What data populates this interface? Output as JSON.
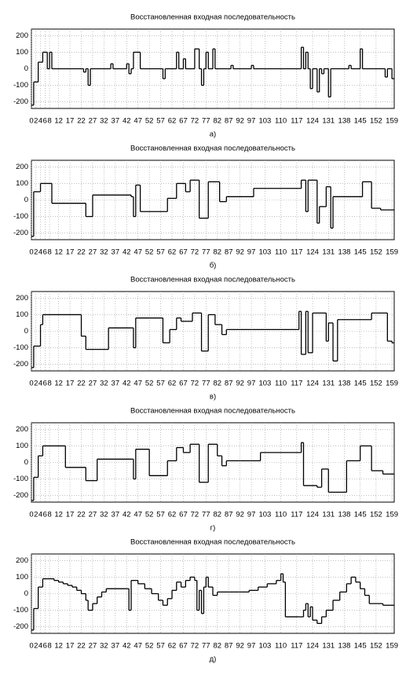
{
  "chart_data": [
    {
      "type": "line",
      "step": "post",
      "title": "Восстановленная входная последовательность",
      "caption": "а)",
      "color": "#000000",
      "grid": true,
      "xlim": [
        0,
        160
      ],
      "ylim": [
        -240,
        240
      ],
      "yticks": [
        -200,
        -100,
        0,
        100,
        200
      ],
      "xticks": [
        0,
        2,
        4,
        6,
        8,
        12,
        17,
        22,
        27,
        32,
        37,
        42,
        47,
        52,
        57,
        62,
        67,
        72,
        77,
        82,
        87,
        92,
        97,
        103,
        110,
        117,
        124,
        131,
        138,
        145,
        152,
        159
      ],
      "x": [
        0,
        1,
        3,
        5,
        7,
        8,
        9,
        23,
        24,
        25,
        26,
        35,
        36,
        42,
        43,
        44,
        45,
        48,
        58,
        59,
        64,
        65,
        67,
        68,
        72,
        74,
        75,
        76,
        77,
        78,
        80,
        81,
        88,
        89,
        97,
        98,
        119,
        120,
        121,
        122,
        123,
        124,
        126,
        127,
        128,
        129,
        131,
        132,
        140,
        141,
        145,
        146,
        156,
        157,
        159
      ],
      "values": [
        -220,
        -80,
        40,
        100,
        0,
        100,
        0,
        -20,
        0,
        -100,
        0,
        30,
        0,
        30,
        -30,
        0,
        100,
        0,
        -60,
        0,
        100,
        0,
        60,
        0,
        120,
        0,
        -100,
        0,
        100,
        0,
        120,
        0,
        20,
        0,
        20,
        0,
        130,
        0,
        100,
        0,
        -120,
        0,
        -140,
        0,
        -30,
        0,
        -170,
        0,
        20,
        0,
        120,
        0,
        -50,
        0,
        -60
      ]
    },
    {
      "type": "line",
      "step": "post",
      "title": "Восстановленная входная последовательность",
      "caption": "б)",
      "color": "#000000",
      "grid": true,
      "xlim": [
        0,
        160
      ],
      "ylim": [
        -240,
        240
      ],
      "yticks": [
        -200,
        -100,
        0,
        100,
        200
      ],
      "xticks": [
        0,
        2,
        4,
        6,
        8,
        12,
        17,
        22,
        27,
        32,
        37,
        42,
        47,
        52,
        57,
        62,
        67,
        72,
        77,
        82,
        87,
        92,
        97,
        103,
        110,
        117,
        124,
        131,
        138,
        145,
        152,
        159
      ],
      "x": [
        0,
        1,
        4,
        9,
        24,
        27,
        44,
        45,
        46,
        48,
        60,
        64,
        68,
        70,
        74,
        78,
        83,
        86,
        98,
        119,
        121,
        122,
        126,
        127,
        130,
        132,
        133,
        146,
        150,
        154
      ],
      "values": [
        -220,
        50,
        100,
        -20,
        -100,
        30,
        20,
        -100,
        90,
        -70,
        10,
        100,
        50,
        120,
        -110,
        110,
        -10,
        20,
        70,
        120,
        -70,
        120,
        -140,
        -40,
        80,
        -170,
        20,
        110,
        -50,
        -60
      ]
    },
    {
      "type": "line",
      "step": "post",
      "title": "Восстановленная входная последовательность",
      "caption": "в)",
      "color": "#000000",
      "grid": true,
      "xlim": [
        0,
        160
      ],
      "ylim": [
        -240,
        240
      ],
      "yticks": [
        -200,
        -100,
        0,
        100,
        200
      ],
      "xticks": [
        0,
        2,
        4,
        6,
        8,
        12,
        17,
        22,
        27,
        32,
        37,
        42,
        47,
        52,
        57,
        62,
        67,
        72,
        77,
        82,
        87,
        92,
        97,
        103,
        110,
        117,
        124,
        131,
        138,
        145,
        152,
        159
      ],
      "x": [
        0,
        1,
        4,
        5,
        22,
        24,
        34,
        44,
        45,
        46,
        58,
        61,
        64,
        66,
        71,
        75,
        78,
        81,
        84,
        86,
        97,
        118,
        119,
        121,
        122,
        124,
        130,
        131,
        133,
        135,
        150,
        157,
        159
      ],
      "values": [
        -220,
        -90,
        40,
        100,
        -30,
        -110,
        20,
        20,
        -100,
        80,
        -70,
        10,
        80,
        60,
        110,
        -120,
        100,
        40,
        -20,
        10,
        10,
        120,
        -140,
        120,
        -130,
        110,
        -60,
        50,
        -180,
        70,
        110,
        -60,
        -70
      ]
    },
    {
      "type": "line",
      "step": "post",
      "title": "Восстановленная входная последовательность",
      "caption": "г)",
      "color": "#000000",
      "grid": true,
      "xlim": [
        0,
        160
      ],
      "ylim": [
        -240,
        240
      ],
      "yticks": [
        -200,
        -100,
        0,
        100,
        200
      ],
      "xticks": [
        0,
        2,
        4,
        6,
        8,
        12,
        17,
        22,
        27,
        32,
        37,
        42,
        47,
        52,
        57,
        62,
        67,
        72,
        77,
        82,
        87,
        92,
        97,
        103,
        110,
        117,
        124,
        131,
        138,
        145,
        152,
        159
      ],
      "x": [
        0,
        1,
        3,
        5,
        15,
        24,
        29,
        44,
        45,
        46,
        52,
        60,
        64,
        67,
        70,
        74,
        78,
        82,
        84,
        86,
        101,
        119,
        120,
        126,
        128,
        131,
        139,
        145,
        150,
        155
      ],
      "values": [
        -230,
        -90,
        40,
        100,
        -30,
        -110,
        20,
        20,
        -100,
        80,
        -80,
        10,
        90,
        60,
        110,
        -120,
        110,
        40,
        -20,
        10,
        60,
        120,
        -140,
        -150,
        -40,
        -180,
        10,
        100,
        -50,
        -70
      ]
    },
    {
      "type": "line",
      "step": "post",
      "title": "Восстановленная входная последовательность",
      "caption": "д)",
      "color": "#000000",
      "grid": true,
      "xlim": [
        0,
        160
      ],
      "ylim": [
        -240,
        240
      ],
      "yticks": [
        -200,
        -100,
        0,
        100,
        200
      ],
      "xticks": [
        0,
        2,
        4,
        6,
        8,
        12,
        17,
        22,
        27,
        32,
        37,
        42,
        47,
        52,
        57,
        62,
        67,
        72,
        77,
        82,
        87,
        92,
        97,
        103,
        110,
        117,
        124,
        131,
        138,
        145,
        152,
        159
      ],
      "x": [
        0,
        1,
        3,
        5,
        8,
        10,
        12,
        14,
        16,
        18,
        20,
        22,
        24,
        25,
        27,
        29,
        31,
        33,
        42,
        43,
        44,
        47,
        50,
        53,
        56,
        58,
        60,
        62,
        64,
        66,
        68,
        70,
        72,
        73,
        74,
        75,
        76,
        77,
        78,
        80,
        82,
        96,
        100,
        104,
        108,
        110,
        111,
        112,
        118,
        120,
        121,
        122,
        123,
        124,
        126,
        128,
        130,
        133,
        136,
        139,
        141,
        143,
        145,
        147,
        149,
        155
      ],
      "values": [
        -220,
        -90,
        40,
        90,
        90,
        80,
        70,
        60,
        50,
        40,
        20,
        0,
        -40,
        -100,
        -60,
        -20,
        10,
        30,
        30,
        -100,
        80,
        60,
        30,
        0,
        -40,
        -70,
        -30,
        20,
        70,
        40,
        80,
        100,
        80,
        -100,
        20,
        -120,
        40,
        100,
        40,
        -10,
        10,
        20,
        40,
        60,
        80,
        120,
        70,
        -140,
        -140,
        -100,
        -60,
        -140,
        -80,
        -160,
        -180,
        -140,
        -100,
        -40,
        10,
        60,
        100,
        70,
        30,
        -10,
        -60,
        -70
      ]
    }
  ]
}
